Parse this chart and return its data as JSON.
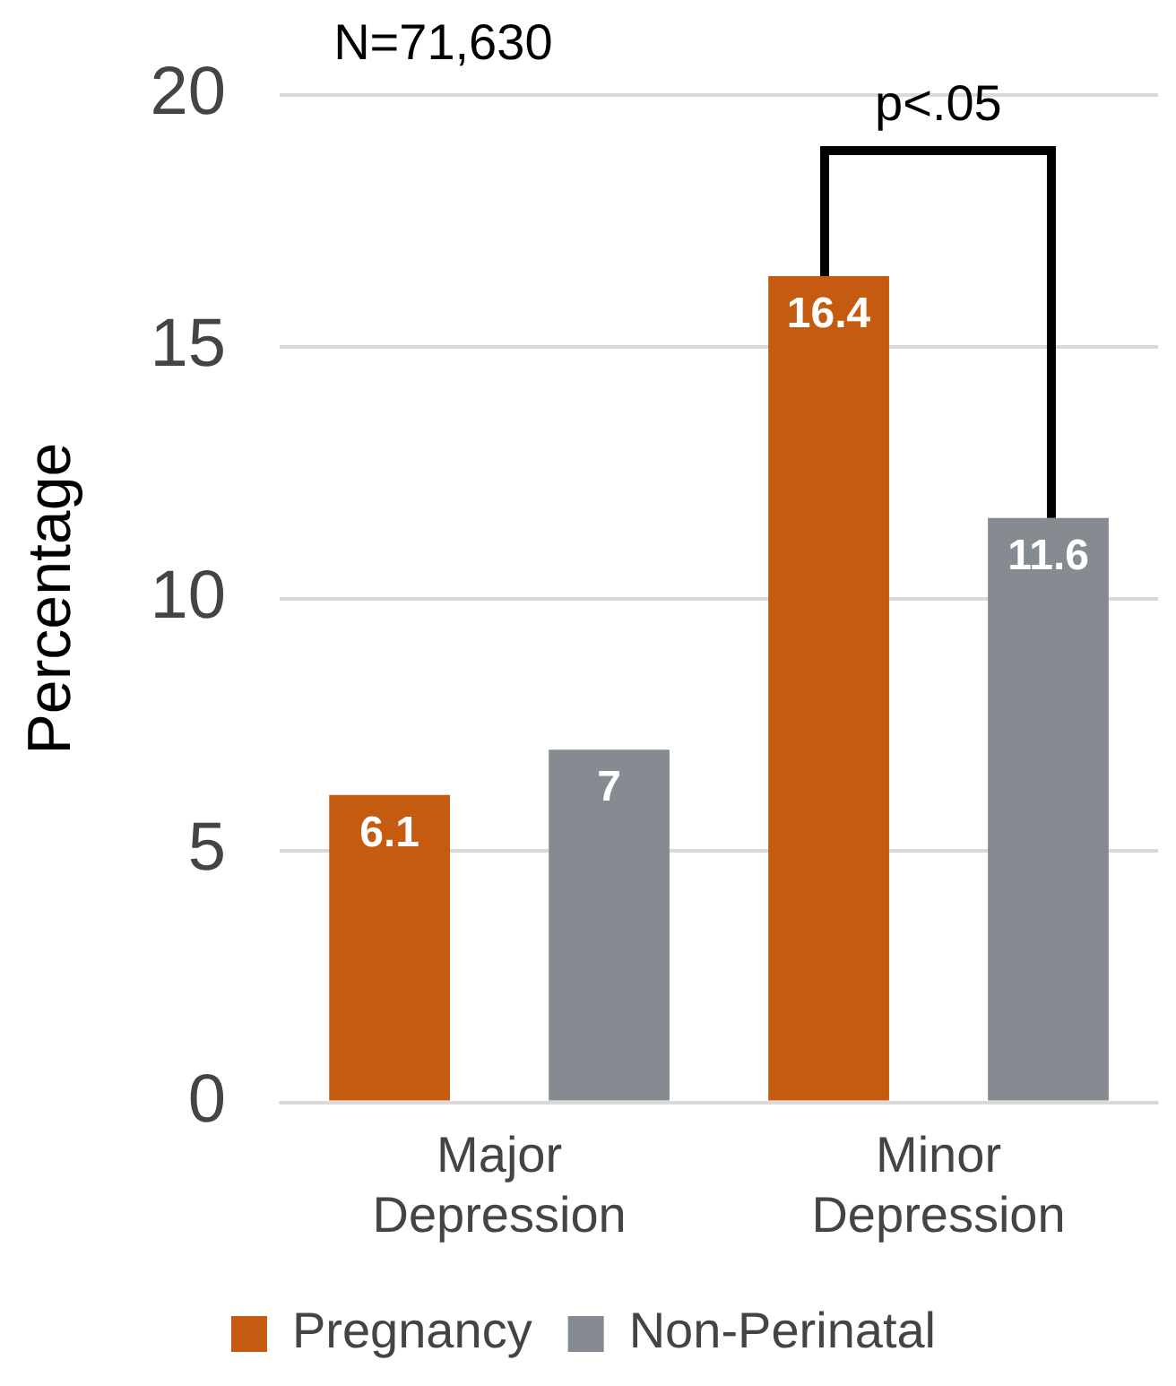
{
  "chart_data": {
    "type": "bar",
    "ylabel": "Percentage",
    "categories": [
      "Major Depression",
      "Minor Depression"
    ],
    "series": [
      {
        "name": "Pregnancy",
        "color": "#c55a11",
        "values": [
          6.1,
          16.4
        ]
      },
      {
        "name": "Non-Perinatal",
        "color": "#868b91",
        "values": [
          7,
          11.6
        ]
      }
    ],
    "ylim": [
      0,
      20
    ],
    "yticks": [
      0,
      5,
      10,
      15,
      20
    ],
    "grid": "y",
    "legend": "bottom",
    "data_labels": true,
    "annotations": [
      "N=71,630",
      "p<.05"
    ]
  }
}
